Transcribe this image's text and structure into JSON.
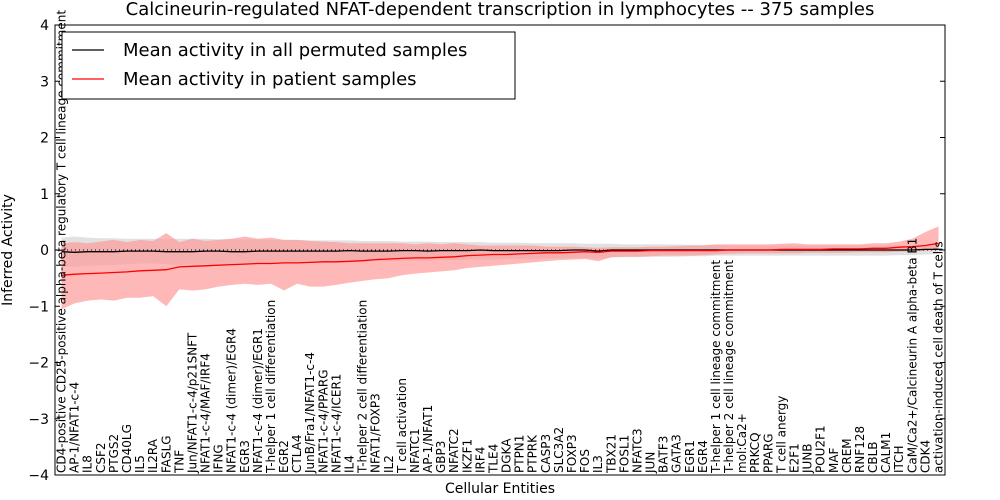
{
  "chart_data": {
    "type": "line",
    "title": "Calcineurin-regulated NFAT-dependent transcription in lymphocytes -- 375 samples",
    "xlabel": "Cellular Entities",
    "ylabel": "Inferred Activity",
    "ylim": [
      -4,
      4
    ],
    "yticks": [
      -4,
      -3,
      -2,
      -1,
      0,
      1,
      2,
      3,
      4
    ],
    "ytick_labels": [
      "−4",
      "−3",
      "−2",
      "−1",
      "0",
      "1",
      "2",
      "3",
      "4"
    ],
    "grid": false,
    "legend": {
      "location": "top-left",
      "entries": [
        {
          "label": "Mean activity in all permuted samples",
          "color": "#000000"
        },
        {
          "label": "Mean activity in patient samples",
          "color": "#ff0000"
        }
      ]
    },
    "categories": [
      "CD4-positive CD25-positive alpha-beta regulatory T cell lineage commitment",
      "AP-1/NFAT1-c-4",
      "IL8",
      "CSF2",
      "PTGS2",
      "CD40LG",
      "IL5",
      "IL2RA",
      "FASLG",
      "TNF",
      "Jun/NFAT1-c-4/p21SNFT",
      "NFAT1-c-4/MAF/IRF4",
      "IFNG",
      "NFAT1-c-4 (dimer)/EGR4",
      "EGR3",
      "NFAT1-c-4 (dimer)/EGR1",
      "T-helper 1 cell differentiation",
      "EGR2",
      "CTLA4",
      "JunB/Fra1/NFAT1-c-4",
      "NFAT1-c-4/PPARG",
      "NFAT1-c-4/ICER1",
      "IL4",
      "T-helper 2 cell differentiation",
      "NFAT1/FOXP3",
      "IL2",
      "T cell activation",
      "NFATC1",
      "AP-1/NFAT1",
      "GBP3",
      "NFATC2",
      "IKZF1",
      "IRF4",
      "TLE4",
      "DGKA",
      "PTPN1",
      "PTPRK",
      "CASP3",
      "SLC3A2",
      "FOXP3",
      "FOS",
      "IL3",
      "TBX21",
      "FOSL1",
      "NFATC3",
      "JUN",
      "BATF3",
      "GATA3",
      "EGR1",
      "EGR4",
      "T-helper 1 cell lineage commitment",
      "T-helper 2 cell lineage commitment",
      "mol:Ca2+",
      "PRKCQ",
      "PPARG",
      "T cell anergy",
      "E2F1",
      "JUNB",
      "POU2F1",
      "MAF",
      "CREM",
      "RNF128",
      "CBLB",
      "CALM1",
      "ITCH",
      "CaM/Ca2+/Calcineurin A alpha-beta B1",
      "CDK4",
      "activation-induced cell death of T cells"
    ],
    "series": [
      {
        "name": "Mean activity in all permuted samples",
        "color": "#000000",
        "band_color": "#c8c8c8",
        "values": [
          -0.03,
          -0.04,
          -0.03,
          -0.03,
          -0.03,
          -0.02,
          -0.02,
          -0.02,
          -0.03,
          -0.03,
          -0.03,
          -0.02,
          -0.02,
          -0.03,
          -0.03,
          -0.02,
          -0.02,
          -0.02,
          -0.02,
          -0.02,
          -0.02,
          -0.02,
          -0.01,
          -0.02,
          -0.02,
          -0.02,
          -0.01,
          -0.01,
          -0.02,
          -0.01,
          -0.01,
          -0.01,
          0.0,
          -0.01,
          -0.01,
          -0.01,
          -0.01,
          -0.01,
          -0.01,
          0.0,
          0.0,
          -0.02,
          0.0,
          0.0,
          0.0,
          0.0,
          0.0,
          0.0,
          0.0,
          0.0,
          0.0,
          0.0,
          0.0,
          0.0,
          0.0,
          0.0,
          0.0,
          0.0,
          0.0,
          0.0,
          0.0,
          0.0,
          0.0,
          0.0,
          0.0,
          0.0,
          0.01,
          0.01
        ],
        "lower": [
          -0.28,
          -0.3,
          -0.28,
          -0.27,
          -0.27,
          -0.25,
          -0.24,
          -0.24,
          -0.25,
          -0.27,
          -0.26,
          -0.25,
          -0.24,
          -0.25,
          -0.25,
          -0.24,
          -0.23,
          -0.23,
          -0.22,
          -0.22,
          -0.22,
          -0.21,
          -0.2,
          -0.21,
          -0.2,
          -0.2,
          -0.19,
          -0.19,
          -0.19,
          -0.18,
          -0.18,
          -0.17,
          -0.17,
          -0.17,
          -0.16,
          -0.16,
          -0.16,
          -0.15,
          -0.15,
          -0.14,
          -0.14,
          -0.16,
          -0.13,
          -0.13,
          -0.13,
          -0.12,
          -0.12,
          -0.12,
          -0.11,
          -0.11,
          -0.1,
          -0.1,
          -0.1,
          -0.1,
          -0.1,
          -0.1,
          -0.1,
          -0.1,
          -0.1,
          -0.1,
          -0.1,
          -0.1,
          -0.1,
          -0.1,
          -0.09,
          -0.09,
          -0.08,
          -0.07
        ],
        "upper": [
          0.22,
          0.24,
          0.22,
          0.21,
          0.21,
          0.2,
          0.2,
          0.2,
          0.19,
          0.2,
          0.2,
          0.2,
          0.19,
          0.19,
          0.19,
          0.19,
          0.18,
          0.18,
          0.18,
          0.17,
          0.17,
          0.17,
          0.17,
          0.16,
          0.16,
          0.16,
          0.15,
          0.15,
          0.15,
          0.14,
          0.14,
          0.14,
          0.14,
          0.13,
          0.13,
          0.13,
          0.12,
          0.12,
          0.12,
          0.12,
          0.11,
          0.11,
          0.11,
          0.1,
          0.1,
          0.1,
          0.1,
          0.1,
          0.09,
          0.09,
          0.09,
          0.08,
          0.08,
          0.08,
          0.08,
          0.08,
          0.08,
          0.08,
          0.08,
          0.08,
          0.08,
          0.08,
          0.08,
          0.08,
          0.08,
          0.08,
          0.08,
          0.08
        ]
      },
      {
        "name": "Mean activity in patient samples",
        "color": "#ff0000",
        "band_color": "#ff9a9a",
        "values": [
          -0.45,
          -0.43,
          -0.42,
          -0.41,
          -0.4,
          -0.39,
          -0.37,
          -0.36,
          -0.35,
          -0.3,
          -0.29,
          -0.28,
          -0.27,
          -0.26,
          -0.25,
          -0.24,
          -0.24,
          -0.23,
          -0.23,
          -0.22,
          -0.21,
          -0.21,
          -0.2,
          -0.19,
          -0.17,
          -0.16,
          -0.15,
          -0.14,
          -0.14,
          -0.13,
          -0.12,
          -0.1,
          -0.09,
          -0.08,
          -0.08,
          -0.07,
          -0.06,
          -0.05,
          -0.05,
          -0.04,
          -0.03,
          -0.04,
          -0.02,
          -0.02,
          -0.02,
          -0.01,
          -0.01,
          -0.01,
          -0.01,
          -0.01,
          -0.01,
          0.0,
          0.0,
          0.0,
          0.0,
          0.01,
          0.01,
          0.01,
          0.01,
          0.02,
          0.02,
          0.02,
          0.03,
          0.03,
          0.05,
          0.06,
          0.08,
          0.12
        ],
        "lower": [
          -1.05,
          -0.95,
          -0.9,
          -0.88,
          -0.9,
          -0.85,
          -0.85,
          -0.82,
          -1.0,
          -0.7,
          -0.72,
          -0.7,
          -0.65,
          -0.62,
          -0.6,
          -0.62,
          -0.6,
          -0.72,
          -0.6,
          -0.65,
          -0.65,
          -0.62,
          -0.58,
          -0.55,
          -0.52,
          -0.5,
          -0.45,
          -0.42,
          -0.4,
          -0.38,
          -0.36,
          -0.32,
          -0.3,
          -0.28,
          -0.26,
          -0.24,
          -0.22,
          -0.2,
          -0.18,
          -0.17,
          -0.16,
          -0.2,
          -0.13,
          -0.12,
          -0.12,
          -0.11,
          -0.1,
          -0.1,
          -0.1,
          -0.09,
          -0.08,
          -0.07,
          -0.06,
          -0.06,
          -0.06,
          -0.06,
          -0.06,
          -0.05,
          -0.05,
          -0.05,
          -0.05,
          -0.04,
          -0.04,
          -0.04,
          -0.03,
          -0.02,
          -0.01,
          0.0
        ],
        "upper": [
          0.12,
          0.14,
          0.12,
          0.15,
          0.18,
          0.14,
          0.18,
          0.16,
          0.3,
          0.14,
          0.2,
          0.16,
          0.18,
          0.2,
          0.24,
          0.2,
          0.22,
          0.18,
          0.18,
          0.16,
          0.15,
          0.14,
          0.12,
          0.12,
          0.12,
          0.12,
          0.12,
          0.1,
          0.12,
          0.1,
          0.12,
          0.1,
          0.08,
          0.08,
          0.08,
          0.08,
          0.08,
          0.06,
          0.06,
          0.06,
          0.05,
          0.04,
          0.05,
          0.05,
          0.05,
          0.06,
          0.06,
          0.07,
          0.08,
          0.08,
          0.1,
          0.1,
          0.1,
          0.1,
          0.1,
          0.11,
          0.12,
          0.1,
          0.1,
          0.1,
          0.1,
          0.1,
          0.12,
          0.12,
          0.15,
          0.2,
          0.32,
          0.42
        ]
      }
    ]
  }
}
